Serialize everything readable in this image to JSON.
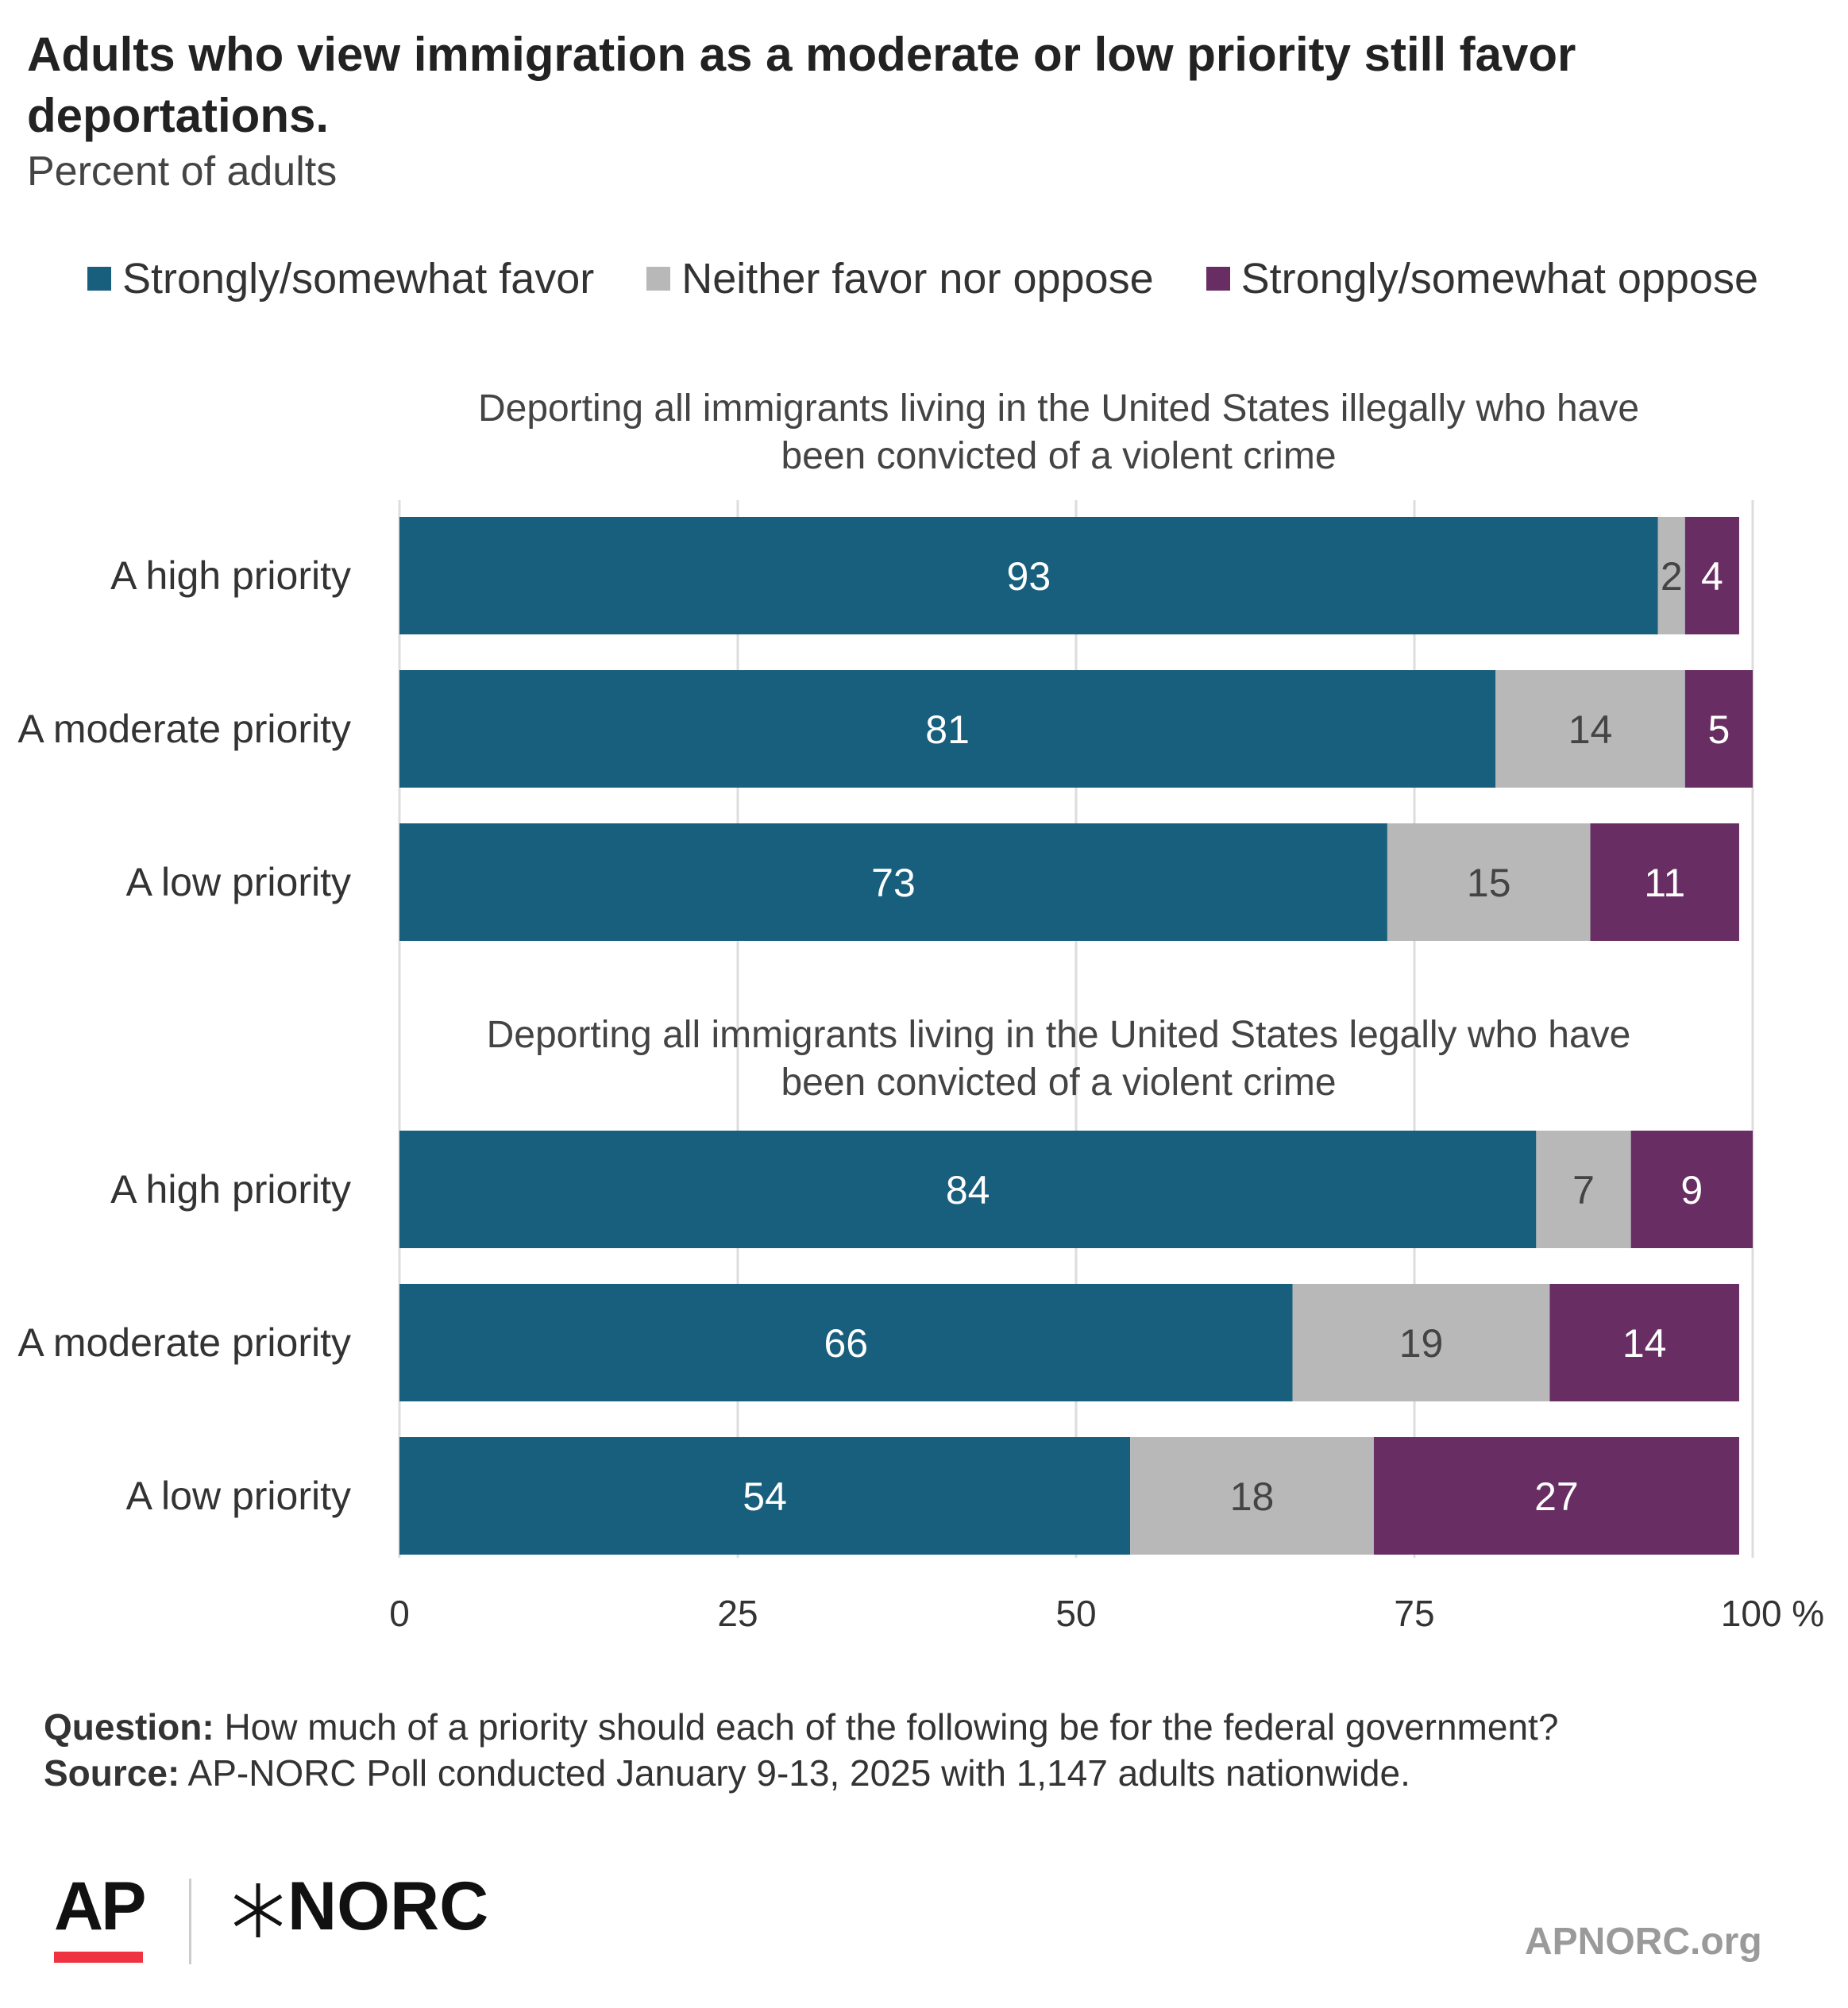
{
  "header": {
    "title": "Adults who view immigration as a moderate or low priority still favor deportations.",
    "subtitle": "Percent of adults"
  },
  "legend": {
    "items": [
      {
        "label": "Strongly/somewhat favor",
        "color": "#185e7d"
      },
      {
        "label": "Neither favor nor oppose",
        "color": "#b8b8b8"
      },
      {
        "label": "Strongly/somewhat oppose",
        "color": "#682d62"
      }
    ]
  },
  "chart_data": {
    "type": "bar",
    "orientation": "horizontal",
    "stacked": true,
    "xlim": [
      0,
      100
    ],
    "ticks": [
      0,
      25,
      50,
      75,
      100
    ],
    "tick_labels": [
      "0",
      "25",
      "50",
      "75",
      "100 %"
    ],
    "grid": true,
    "legend_position": "top",
    "series_names": [
      "Strongly/somewhat favor",
      "Neither favor nor oppose",
      "Strongly/somewhat oppose"
    ],
    "colors": [
      "#185e7d",
      "#b8b8b8",
      "#682d62"
    ],
    "label_colors": [
      "#ffffff",
      "#444444",
      "#ffffff"
    ],
    "panels": [
      {
        "title_lines": [
          "Deporting all immigrants living in the United States illegally who have",
          "been convicted of a violent crime"
        ],
        "categories": [
          "A high priority",
          "A moderate priority",
          "A low priority"
        ],
        "values": [
          [
            93,
            2,
            4
          ],
          [
            81,
            14,
            5
          ],
          [
            73,
            15,
            11
          ]
        ]
      },
      {
        "title_lines": [
          "Deporting all immigrants living in the United States legally who have",
          "been convicted of a violent crime"
        ],
        "categories": [
          "A high priority",
          "A moderate priority",
          "A low priority"
        ],
        "values": [
          [
            84,
            7,
            9
          ],
          [
            66,
            19,
            14
          ],
          [
            54,
            18,
            27
          ]
        ]
      }
    ]
  },
  "footer": {
    "question_label": "Question:",
    "question_text": " How much of a priority should each of the following be for the federal government?",
    "source_label": "Source:",
    "source_text": " AP-NORC Poll conducted January 9-13, 2025 with 1,147 adults nationwide."
  },
  "branding": {
    "ap_logo": "AP",
    "norc_logo": "NORC",
    "site": "APNORC.org",
    "ap_accent": "#ef3340"
  }
}
